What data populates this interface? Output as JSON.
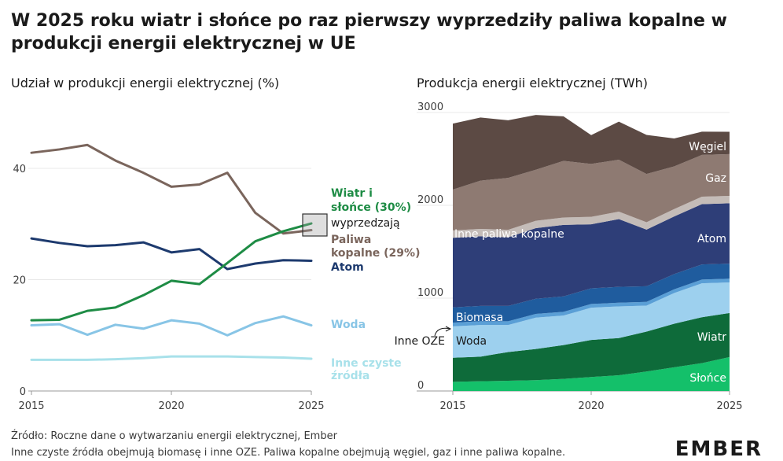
{
  "title": "W 2025 roku wiatr i słońce po raz pierwszy wyprzedziły paliwa kopalne w produkcji energii elektrycznej w UE",
  "source": "Źródło: Roczne dane o wytwarzaniu energii elektrycznej, Ember",
  "note": "Inne czyste źródła obejmują biomasę i inne OZE. Paliwa kopalne obejmują węgiel, gaz i inne paliwa kopalne.",
  "brand": "EMBER",
  "colors": {
    "wind_solar": "#1e8c45",
    "fossil": "#7a655c",
    "nuclear": "#1d3a6e",
    "hydro": "#88c5e6",
    "other_clean": "#a8e1ea",
    "coal": "#5c4a44",
    "gas": "#8e7a72",
    "other_fossil": "#c4bcb8",
    "nuclear_area": "#2e3e78",
    "bio": "#1f5c9e",
    "other_re": "#5a9fd6",
    "hydro_area": "#9dd0ee",
    "wind": "#0e6b3a",
    "solar": "#14c06a"
  },
  "highlight_label": "wyprzedzają",
  "chart_data": [
    {
      "type": "line",
      "title": "Udział w produkcji energii elektrycznej (%)",
      "x": [
        2015,
        2016,
        2017,
        2018,
        2019,
        2020,
        2021,
        2022,
        2023,
        2024,
        2025
      ],
      "xticks": [
        "2015",
        "2020",
        "2025"
      ],
      "yticks": [
        "0",
        "20",
        "40"
      ],
      "ylim": [
        0,
        40
      ],
      "series": [
        {
          "key": "fossil",
          "name": "Paliwa kopalne (29%)",
          "values": [
            42.8,
            43.4,
            44.2,
            41.4,
            39.2,
            36.7,
            37.1,
            39.2,
            32.0,
            28.3,
            28.9
          ]
        },
        {
          "key": "nuclear",
          "name": "Atom",
          "values": [
            27.4,
            26.6,
            26.0,
            26.2,
            26.7,
            24.9,
            25.5,
            21.9,
            22.9,
            23.5,
            23.4
          ]
        },
        {
          "key": "wind_solar",
          "name": "Wiatr i słońce (30%)",
          "values": [
            12.7,
            12.8,
            14.4,
            15.0,
            17.2,
            19.8,
            19.2,
            23.0,
            26.9,
            28.7,
            30.1
          ]
        },
        {
          "key": "hydro",
          "name": "Woda",
          "values": [
            11.8,
            12.0,
            10.1,
            11.9,
            11.2,
            12.7,
            12.1,
            10.0,
            12.2,
            13.4,
            11.8
          ]
        },
        {
          "key": "other_clean",
          "name": "Inne czyste źródła",
          "values": [
            5.6,
            5.6,
            5.6,
            5.7,
            5.9,
            6.2,
            6.2,
            6.2,
            6.1,
            6.0,
            5.8
          ]
        }
      ]
    },
    {
      "type": "area",
      "title": "Produkcja energii elektrycznej (TWh)",
      "x": [
        2015,
        2016,
        2017,
        2018,
        2019,
        2020,
        2021,
        2022,
        2023,
        2024,
        2025
      ],
      "xticks": [
        "2015",
        "2020",
        "2025"
      ],
      "yticks": [
        "0",
        "1000",
        "2000",
        "3000"
      ],
      "ylim": [
        0,
        3000
      ],
      "stacked": true,
      "series": [
        {
          "key": "solar",
          "name": "Słońce",
          "values": [
            98,
            105,
            110,
            117,
            130,
            150,
            170,
            210,
            255,
            300,
            365
          ]
        },
        {
          "key": "wind",
          "name": "Wiatr",
          "values": [
            260,
            265,
            310,
            335,
            365,
            400,
            400,
            430,
            470,
            495,
            475
          ]
        },
        {
          "key": "hydro_area",
          "name": "Woda",
          "values": [
            338,
            341,
            291,
            338,
            318,
            347,
            341,
            280,
            330,
            365,
            330
          ]
        },
        {
          "key": "other_re",
          "name": "Inne OZE",
          "values": [
            40,
            40,
            40,
            40,
            40,
            40,
            40,
            40,
            40,
            40,
            40
          ]
        },
        {
          "key": "bio",
          "name": "Biomasa",
          "values": [
            164,
            165,
            165,
            164,
            166,
            169,
            171,
            168,
            165,
            163,
            162
          ]
        },
        {
          "key": "nuclear_area",
          "name": "Atom",
          "values": [
            750,
            750,
            740,
            760,
            770,
            690,
            730,
            610,
            620,
            650,
            650
          ]
        },
        {
          "key": "other_fossil",
          "name": "Inne paliwa kopalne",
          "values": [
            80,
            80,
            80,
            80,
            80,
            80,
            80,
            80,
            80,
            80,
            80
          ]
        },
        {
          "key": "gas",
          "name": "Gaz",
          "values": [
            440,
            520,
            560,
            550,
            610,
            570,
            560,
            520,
            460,
            450,
            450
          ]
        },
        {
          "key": "coal",
          "name": "Węgiel",
          "values": [
            710,
            680,
            620,
            590,
            480,
            310,
            410,
            420,
            300,
            250,
            240
          ]
        }
      ]
    }
  ]
}
